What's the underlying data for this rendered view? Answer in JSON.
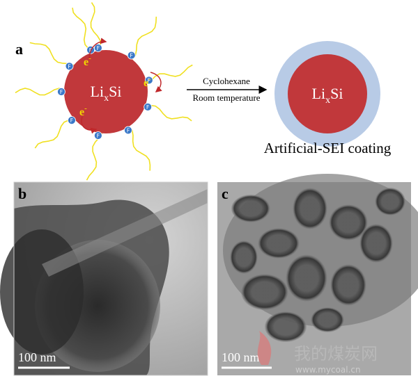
{
  "panel_a": {
    "label": "a",
    "particle_left": {
      "base": "Li",
      "subscript": "x",
      "suffix": "Si"
    },
    "electron": {
      "symbol": "e",
      "charge": "-"
    },
    "ligand_atom": "F",
    "arrow_top": "Cyclohexane",
    "arrow_bottom": "Room temperature",
    "particle_right": {
      "base": "Li",
      "subscript": "x",
      "suffix": "Si"
    },
    "caption": "Artificial-SEI coating"
  },
  "panel_b": {
    "label": "b",
    "scale_bar": "100 nm"
  },
  "panel_c": {
    "label": "c",
    "scale_bar": "100 nm"
  },
  "watermark": {
    "name": "我的煤炭网",
    "url": "www.mycoal.cn"
  }
}
